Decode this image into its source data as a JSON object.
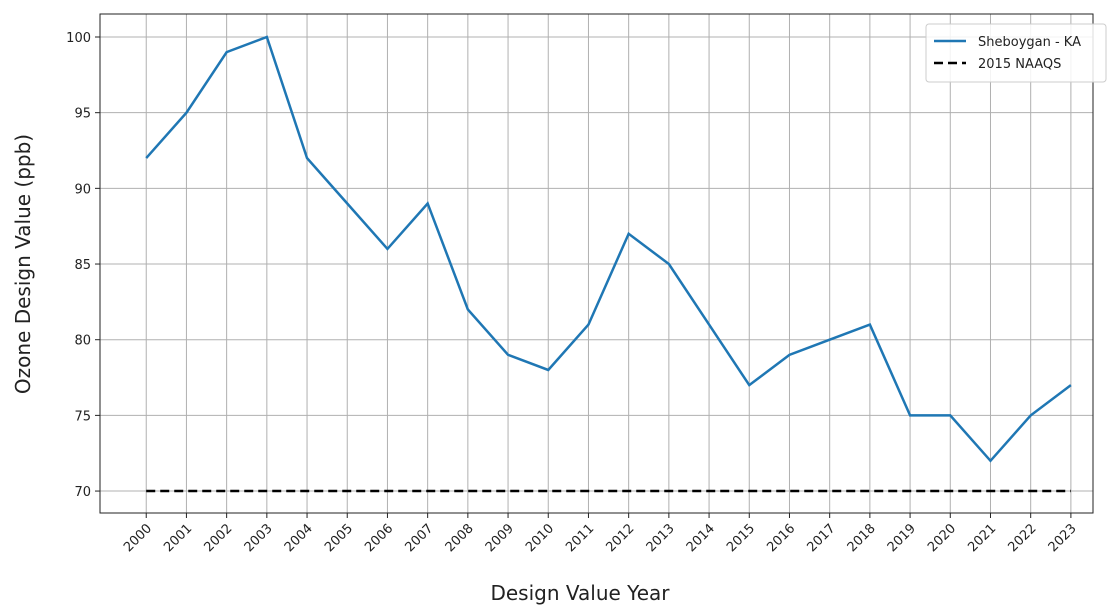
{
  "chart_data": {
    "type": "line",
    "xlabel": "Design Value Year",
    "ylabel": "Ozone Design Value (ppb)",
    "x": [
      2000,
      2001,
      2002,
      2003,
      2004,
      2005,
      2006,
      2007,
      2008,
      2009,
      2010,
      2011,
      2012,
      2013,
      2014,
      2015,
      2016,
      2017,
      2018,
      2019,
      2020,
      2021,
      2022,
      2023
    ],
    "series": [
      {
        "name": "Sheboygan - KA",
        "color": "#1f77b4",
        "linestyle": "solid",
        "values": [
          92,
          95,
          99,
          100,
          92,
          89,
          86,
          89,
          82,
          79,
          78,
          81,
          87,
          85,
          81,
          77,
          79,
          80,
          81,
          75,
          75,
          72,
          75,
          77
        ]
      },
      {
        "name": "2015 NAAQS",
        "color": "#000000",
        "linestyle": "dashed",
        "values": [
          70,
          70,
          70,
          70,
          70,
          70,
          70,
          70,
          70,
          70,
          70,
          70,
          70,
          70,
          70,
          70,
          70,
          70,
          70,
          70,
          70,
          70,
          70,
          70
        ]
      }
    ],
    "xlim": [
      1998.85,
      2023.55
    ],
    "xticks": [
      2000,
      2001,
      2002,
      2003,
      2004,
      2005,
      2006,
      2007,
      2008,
      2009,
      2010,
      2011,
      2012,
      2013,
      2014,
      2015,
      2016,
      2017,
      2018,
      2019,
      2020,
      2021,
      2022,
      2023
    ],
    "ylim": [
      68.55,
      101.52
    ],
    "yticks": [
      70,
      75,
      80,
      85,
      90,
      95,
      100
    ],
    "grid": true,
    "legend": "upper right"
  }
}
